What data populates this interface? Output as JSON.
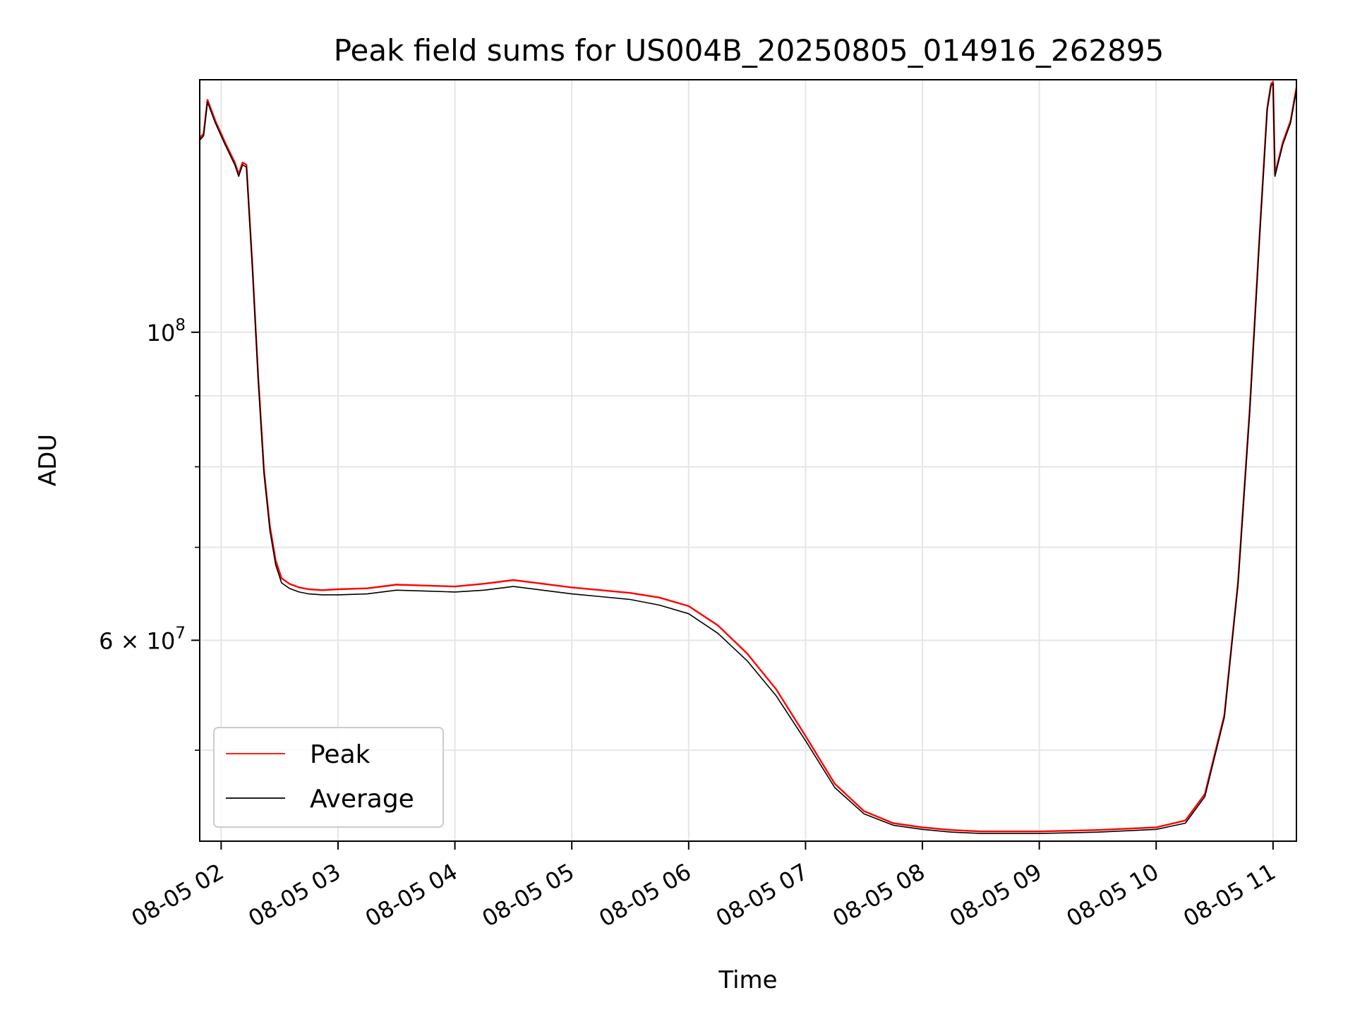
{
  "chart_data": {
    "type": "line",
    "title": "Peak field sums for US004B_20250805_014916_262895",
    "xlabel": "Time",
    "ylabel": "ADU",
    "y_scale": "log",
    "grid": true,
    "legend_position": "lower-left",
    "xlim": [
      "2025-08-05T01:49",
      "2025-08-05T11:12"
    ],
    "ylim": [
      43000000,
      152000000
    ],
    "x_ticks": [
      {
        "value": "2025-08-05T02:00",
        "label": "08-05 02"
      },
      {
        "value": "2025-08-05T03:00",
        "label": "08-05 03"
      },
      {
        "value": "2025-08-05T04:00",
        "label": "08-05 04"
      },
      {
        "value": "2025-08-05T05:00",
        "label": "08-05 05"
      },
      {
        "value": "2025-08-05T06:00",
        "label": "08-05 06"
      },
      {
        "value": "2025-08-05T07:00",
        "label": "08-05 07"
      },
      {
        "value": "2025-08-05T08:00",
        "label": "08-05 08"
      },
      {
        "value": "2025-08-05T09:00",
        "label": "08-05 09"
      },
      {
        "value": "2025-08-05T10:00",
        "label": "08-05 10"
      },
      {
        "value": "2025-08-05T11:00",
        "label": "08-05 11"
      }
    ],
    "y_major_ticks": [
      {
        "value": 60000000,
        "mantissa": "6",
        "base": "10",
        "exp": "7"
      },
      {
        "value": 100000000,
        "mantissa": "",
        "base": "10",
        "exp": "8"
      }
    ],
    "y_minor_ticks": [
      50000000,
      70000000,
      80000000,
      90000000
    ],
    "series": [
      {
        "name": "Peak",
        "color": "#ff0000",
        "x": [
          "2025-08-05T01:49",
          "2025-08-05T01:51",
          "2025-08-05T01:53",
          "2025-08-05T01:57",
          "2025-08-05T02:02",
          "2025-08-05T02:07",
          "2025-08-05T02:09",
          "2025-08-05T02:11",
          "2025-08-05T02:13",
          "2025-08-05T02:16",
          "2025-08-05T02:19",
          "2025-08-05T02:22",
          "2025-08-05T02:25",
          "2025-08-05T02:28",
          "2025-08-05T02:31",
          "2025-08-05T02:35",
          "2025-08-05T02:40",
          "2025-08-05T02:45",
          "2025-08-05T02:52",
          "2025-08-05T03:00",
          "2025-08-05T03:15",
          "2025-08-05T03:30",
          "2025-08-05T03:45",
          "2025-08-05T04:00",
          "2025-08-05T04:15",
          "2025-08-05T04:30",
          "2025-08-05T04:45",
          "2025-08-05T05:00",
          "2025-08-05T05:15",
          "2025-08-05T05:30",
          "2025-08-05T05:45",
          "2025-08-05T06:00",
          "2025-08-05T06:15",
          "2025-08-05T06:30",
          "2025-08-05T06:45",
          "2025-08-05T07:00",
          "2025-08-05T07:15",
          "2025-08-05T07:30",
          "2025-08-05T07:45",
          "2025-08-05T08:00",
          "2025-08-05T08:15",
          "2025-08-05T08:30",
          "2025-08-05T09:00",
          "2025-08-05T09:30",
          "2025-08-05T10:00",
          "2025-08-05T10:15",
          "2025-08-05T10:25",
          "2025-08-05T10:35",
          "2025-08-05T10:42",
          "2025-08-05T10:48",
          "2025-08-05T10:53",
          "2025-08-05T10:57",
          "2025-08-05T10:59",
          "2025-08-05T11:00",
          "2025-08-05T11:01",
          "2025-08-05T11:05",
          "2025-08-05T11:09",
          "2025-08-05T11:12"
        ],
        "values": [
          138000000,
          139000000,
          147000000,
          142000000,
          137000000,
          132500000,
          130000000,
          132500000,
          132000000,
          112000000,
          93000000,
          79500000,
          72500000,
          68500000,
          66500000,
          65900000,
          65500000,
          65300000,
          65200000,
          65300000,
          65400000,
          65800000,
          65700000,
          65600000,
          65900000,
          66300000,
          65900000,
          65500000,
          65200000,
          64900000,
          64400000,
          63500000,
          61500000,
          58700000,
          55300000,
          51200000,
          47300000,
          45200000,
          44300000,
          44000000,
          43800000,
          43700000,
          43700000,
          43800000,
          44000000,
          44500000,
          46500000,
          53000000,
          66000000,
          88000000,
          117000000,
          145000000,
          151000000,
          151500000,
          130000000,
          137000000,
          142000000,
          150000000
        ]
      },
      {
        "name": "Average",
        "color": "#000000",
        "x": [
          "2025-08-05T01:49",
          "2025-08-05T01:51",
          "2025-08-05T01:53",
          "2025-08-05T01:57",
          "2025-08-05T02:02",
          "2025-08-05T02:07",
          "2025-08-05T02:09",
          "2025-08-05T02:11",
          "2025-08-05T02:13",
          "2025-08-05T02:16",
          "2025-08-05T02:19",
          "2025-08-05T02:22",
          "2025-08-05T02:25",
          "2025-08-05T02:28",
          "2025-08-05T02:31",
          "2025-08-05T02:35",
          "2025-08-05T02:40",
          "2025-08-05T02:45",
          "2025-08-05T02:52",
          "2025-08-05T03:00",
          "2025-08-05T03:15",
          "2025-08-05T03:30",
          "2025-08-05T03:45",
          "2025-08-05T04:00",
          "2025-08-05T04:15",
          "2025-08-05T04:30",
          "2025-08-05T04:45",
          "2025-08-05T05:00",
          "2025-08-05T05:15",
          "2025-08-05T05:30",
          "2025-08-05T05:45",
          "2025-08-05T06:00",
          "2025-08-05T06:15",
          "2025-08-05T06:30",
          "2025-08-05T06:45",
          "2025-08-05T07:00",
          "2025-08-05T07:15",
          "2025-08-05T07:30",
          "2025-08-05T07:45",
          "2025-08-05T08:00",
          "2025-08-05T08:15",
          "2025-08-05T08:30",
          "2025-08-05T09:00",
          "2025-08-05T09:30",
          "2025-08-05T10:00",
          "2025-08-05T10:15",
          "2025-08-05T10:25",
          "2025-08-05T10:35",
          "2025-08-05T10:42",
          "2025-08-05T10:48",
          "2025-08-05T10:53",
          "2025-08-05T10:57",
          "2025-08-05T10:59",
          "2025-08-05T11:00",
          "2025-08-05T11:01",
          "2025-08-05T11:05",
          "2025-08-05T11:09",
          "2025-08-05T11:12"
        ],
        "values": [
          137500000,
          138500000,
          146500000,
          141500000,
          136500000,
          132000000,
          129500000,
          132000000,
          131500000,
          111500000,
          92500000,
          79000000,
          72000000,
          68000000,
          66000000,
          65400000,
          65000000,
          64800000,
          64700000,
          64700000,
          64800000,
          65200000,
          65100000,
          65000000,
          65200000,
          65600000,
          65200000,
          64800000,
          64500000,
          64200000,
          63600000,
          62700000,
          60700000,
          58000000,
          54700000,
          50800000,
          47000000,
          45000000,
          44150000,
          43850000,
          43650000,
          43550000,
          43550000,
          43650000,
          43850000,
          44300000,
          46300000,
          52800000,
          65800000,
          87500000,
          116500000,
          144500000,
          150500000,
          151000000,
          129500000,
          136500000,
          141500000,
          149500000
        ]
      }
    ]
  }
}
